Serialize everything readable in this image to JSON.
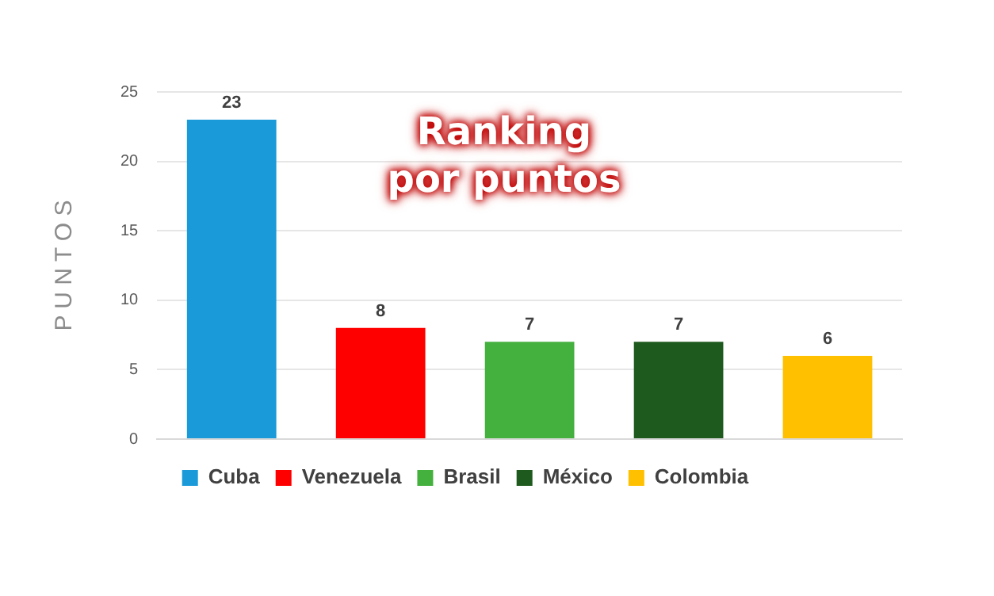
{
  "chart_data": {
    "type": "bar",
    "title": "Ranking\npor puntos",
    "ylabel": "P U N T O S",
    "categories": [
      null,
      null,
      null,
      null,
      null
    ],
    "series": [
      {
        "name": "Cuba",
        "color": "#1a9ad9",
        "values": [
          23,
          null,
          null,
          null,
          null
        ]
      },
      {
        "name": "Venezuela",
        "color": "#ff0000",
        "values": [
          null,
          8,
          null,
          null,
          null
        ]
      },
      {
        "name": "Brasil",
        "color": "#44b03e",
        "values": [
          null,
          null,
          7,
          null,
          null
        ]
      },
      {
        "name": "México",
        "color": "#1e5a1e",
        "values": [
          null,
          null,
          null,
          7,
          null
        ]
      },
      {
        "name": "Colombia",
        "color": "#ffc000",
        "values": [
          null,
          null,
          null,
          null,
          6
        ]
      }
    ],
    "ylim": [
      0,
      25
    ],
    "yticks": [
      0,
      5,
      10,
      15,
      20,
      25
    ],
    "grid": "y",
    "legend": "bottom",
    "tick_labels": "y",
    "data_labels": true
  }
}
